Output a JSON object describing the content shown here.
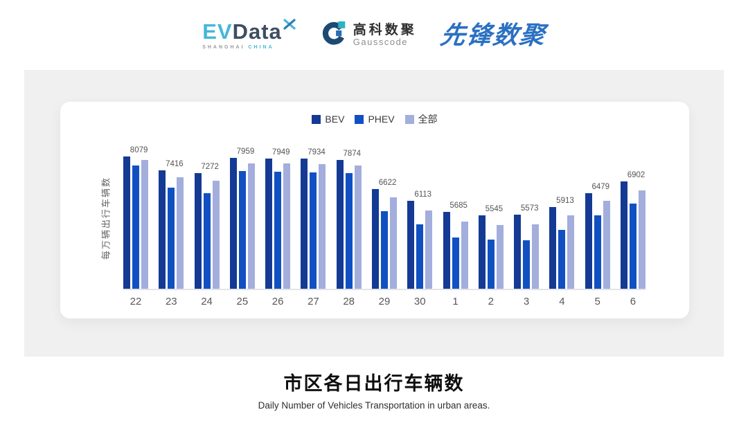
{
  "header": {
    "evdata": {
      "ev": "EV",
      "data": "Data",
      "sub_left": "SHANGHAI",
      "sub_right": "CHINA"
    },
    "gausscode": {
      "cn": "高科数聚",
      "en": "Gausscode"
    },
    "xianfeng": {
      "text": "先锋数聚"
    }
  },
  "chart_data": {
    "type": "bar",
    "categories": [
      "22",
      "23",
      "24",
      "25",
      "26",
      "27",
      "28",
      "29",
      "30",
      "1",
      "2",
      "3",
      "4",
      "5",
      "6"
    ],
    "series": [
      {
        "name": "BEV",
        "key": "bev",
        "color": "#143a94",
        "values": [
          8227,
          7687,
          7561,
          8155,
          8138,
          8138,
          8074,
          6950,
          6481,
          6068,
          5933,
          5960,
          6257,
          6797,
          7237
        ]
      },
      {
        "name": "PHEV",
        "key": "phev",
        "color": "#1150c2",
        "values": [
          7876,
          7012,
          6788,
          7642,
          7634,
          7598,
          7580,
          6095,
          5555,
          5060,
          4969,
          4942,
          5347,
          5933,
          6383
        ]
      },
      {
        "name": "全部",
        "key": "all",
        "color": "#a3aedd",
        "values": [
          8079,
          7416,
          7272,
          7959,
          7949,
          7934,
          7874,
          6622,
          6113,
          5685,
          5545,
          5573,
          5913,
          6479,
          6902
        ]
      }
    ],
    "labels": [
      8079,
      7416,
      7272,
      7959,
      7949,
      7934,
      7874,
      6622,
      6113,
      5685,
      5545,
      5573,
      5913,
      6479,
      6902
    ],
    "labeled_series": "全部",
    "title": "",
    "xlabel": "",
    "ylabel": "每万辆出行车辆数",
    "ylim": [
      3050,
      8600
    ],
    "grid": false,
    "legend_position": "top"
  },
  "footer": {
    "title": "市区各日出行车辆数",
    "subtitle": "Daily Number of Vehicles Transportation in urban areas."
  },
  "colors": {
    "band_bg": "#f0f0f1",
    "card_bg": "#ffffff",
    "axis_line": "#e4e4e6",
    "bev": "#143a94",
    "phev": "#1150c2",
    "all": "#a3aedd",
    "evdata_cyan": "#45b7d9",
    "evdata_dark": "#3d4e61",
    "xianfeng_blue": "#2b70c2"
  }
}
